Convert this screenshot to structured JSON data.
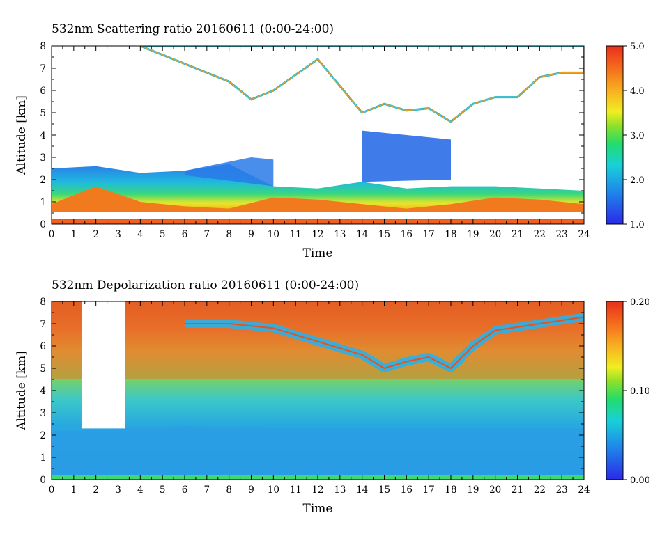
{
  "chart_data": [
    {
      "type": "heatmap",
      "title": "532nm Scattering ratio  20160611 (0:00-24:00)",
      "xlabel": "Time",
      "ylabel": "Altitude [km]",
      "xlim": [
        0,
        24
      ],
      "ylim": [
        0,
        8
      ],
      "xticks": [
        "0",
        "1",
        "2",
        "3",
        "4",
        "5",
        "6",
        "7",
        "8",
        "9",
        "10",
        "11",
        "12",
        "13",
        "14",
        "15",
        "16",
        "17",
        "18",
        "19",
        "20",
        "21",
        "22",
        "23",
        "24"
      ],
      "yticks": [
        "0",
        "1",
        "2",
        "3",
        "4",
        "5",
        "6",
        "7",
        "8"
      ],
      "colorbar": {
        "range": [
          1.0,
          5.0
        ],
        "ticks": [
          "1.0",
          "2.0",
          "3.0",
          "4.0",
          "5.0"
        ]
      },
      "features": {
        "boundary_layer_top_km": [
          [
            0,
            2.5
          ],
          [
            2,
            2.6
          ],
          [
            4,
            2.3
          ],
          [
            6,
            2.4
          ],
          [
            8,
            2.7
          ],
          [
            10,
            1.7
          ],
          [
            12,
            1.6
          ],
          [
            14,
            1.9
          ],
          [
            16,
            1.6
          ],
          [
            18,
            1.7
          ],
          [
            20,
            1.7
          ],
          [
            22,
            1.6
          ],
          [
            24,
            1.5
          ]
        ],
        "high_scatter_layer_top_km": [
          [
            0,
            0.9
          ],
          [
            2,
            1.7
          ],
          [
            4,
            1.0
          ],
          [
            6,
            0.8
          ],
          [
            8,
            0.7
          ],
          [
            10,
            1.2
          ],
          [
            12,
            1.1
          ],
          [
            14,
            0.9
          ],
          [
            16,
            0.7
          ],
          [
            18,
            0.9
          ],
          [
            20,
            1.2
          ],
          [
            22,
            1.1
          ],
          [
            24,
            0.9
          ]
        ],
        "cloud_base_km": [
          [
            4,
            8.0
          ],
          [
            6,
            7.2
          ],
          [
            8,
            6.4
          ],
          [
            9,
            5.6
          ],
          [
            10,
            6.0
          ],
          [
            12,
            7.4
          ],
          [
            13,
            6.2
          ],
          [
            14,
            5.0
          ],
          [
            15,
            5.4
          ],
          [
            16,
            5.1
          ],
          [
            17,
            5.2
          ],
          [
            18,
            4.6
          ],
          [
            19,
            5.4
          ],
          [
            20,
            5.7
          ],
          [
            21,
            5.7
          ],
          [
            22,
            6.6
          ],
          [
            23,
            6.8
          ],
          [
            24,
            6.8
          ]
        ],
        "ground_line_km": 0.2
      }
    },
    {
      "type": "heatmap",
      "title": "532nm Depolarization ratio  20160611 (0:00-24:00)",
      "xlabel": "Time",
      "ylabel": "Altitude [km]",
      "xlim": [
        0,
        24
      ],
      "ylim": [
        0,
        8
      ],
      "xticks": [
        "0",
        "1",
        "2",
        "3",
        "4",
        "5",
        "6",
        "7",
        "8",
        "9",
        "10",
        "11",
        "12",
        "13",
        "14",
        "15",
        "16",
        "17",
        "18",
        "19",
        "20",
        "21",
        "22",
        "23",
        "24"
      ],
      "yticks": [
        "0",
        "1",
        "2",
        "3",
        "4",
        "5",
        "6",
        "7",
        "8"
      ],
      "colorbar": {
        "range": [
          0.0,
          0.2
        ],
        "ticks": [
          "0.00",
          "0.10",
          "0.20"
        ]
      },
      "features": {
        "low_depol_layer_top_km": [
          [
            1.3,
            2.2
          ],
          [
            3,
            2.3
          ],
          [
            6,
            2.4
          ],
          [
            10,
            2.3
          ],
          [
            14,
            2.3
          ],
          [
            18,
            2.3
          ],
          [
            24,
            2.3
          ]
        ],
        "cloud_band_km": [
          [
            6,
            7.0
          ],
          [
            8,
            7.0
          ],
          [
            10,
            6.8
          ],
          [
            14,
            5.6
          ],
          [
            15,
            5.0
          ],
          [
            16,
            5.3
          ],
          [
            17,
            5.5
          ],
          [
            18,
            5.0
          ],
          [
            19,
            6.0
          ],
          [
            20,
            6.7
          ],
          [
            22,
            7.0
          ],
          [
            24,
            7.3
          ]
        ]
      }
    }
  ]
}
